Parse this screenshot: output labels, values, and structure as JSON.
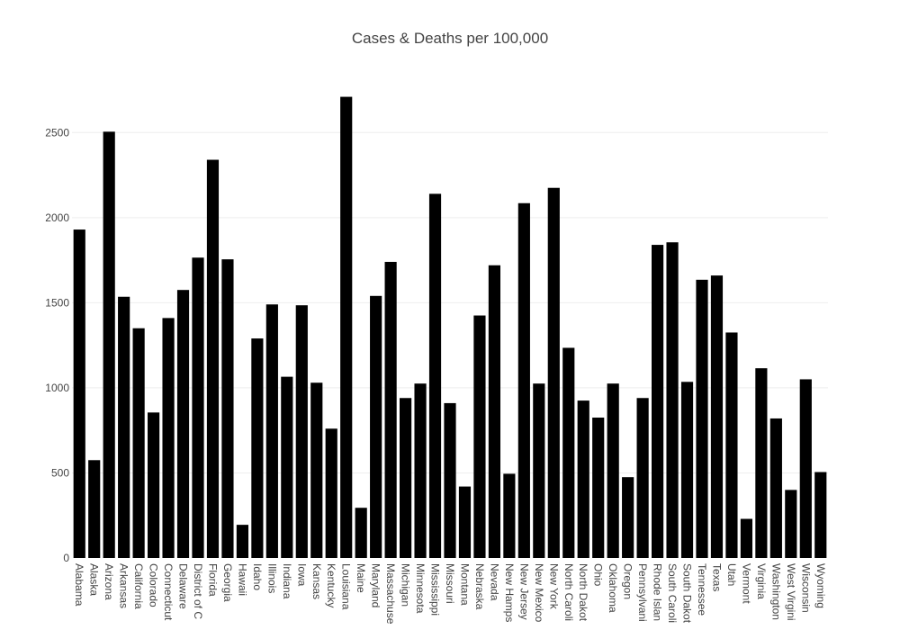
{
  "chart_data": {
    "type": "bar",
    "title": "Cases & Deaths per 100,000",
    "xlabel": "",
    "ylabel": "",
    "ylim": [
      0,
      2750
    ],
    "yticks": [
      0,
      500,
      1000,
      1500,
      2000,
      2500
    ],
    "grid": true,
    "bar_color": "#000000",
    "gridline_color": "#eeeeee",
    "categories": [
      "Alabama",
      "Alaska",
      "Arizona",
      "Arkansas",
      "California",
      "Colorado",
      "Connecticut",
      "Delaware",
      "District of C",
      "Florida",
      "Georgia",
      "Hawaii",
      "Idaho",
      "Illinois",
      "Indiana",
      "Iowa",
      "Kansas",
      "Kentucky",
      "Louisiana",
      "Maine",
      "Maryland",
      "Massachuse",
      "Michigan",
      "Minnesota",
      "Mississippi",
      "Missouri",
      "Montana",
      "Nebraska",
      "Nevada",
      "New Hamps",
      "New Jersey",
      "New Mexico",
      "New York",
      "North Caroli",
      "North Dakot",
      "Ohio",
      "Oklahoma",
      "Oregon",
      "Pennsylvani",
      "Rhode Islan",
      "South Caroli",
      "South Dakot",
      "Tennessee",
      "Texas",
      "Utah",
      "Vermont",
      "Virginia",
      "Washington",
      "West Virgini",
      "Wisconsin",
      "Wyoming"
    ],
    "values": [
      1930,
      575,
      2505,
      1535,
      1350,
      855,
      1410,
      1575,
      1765,
      2340,
      1755,
      195,
      1290,
      1490,
      1065,
      1485,
      1030,
      760,
      2710,
      295,
      1540,
      1740,
      940,
      1025,
      2140,
      910,
      420,
      1425,
      1720,
      495,
      2085,
      1025,
      2175,
      1235,
      925,
      825,
      1025,
      475,
      940,
      1840,
      1855,
      1035,
      1635,
      1660,
      1325,
      230,
      1115,
      820,
      400,
      1050,
      505
    ]
  }
}
